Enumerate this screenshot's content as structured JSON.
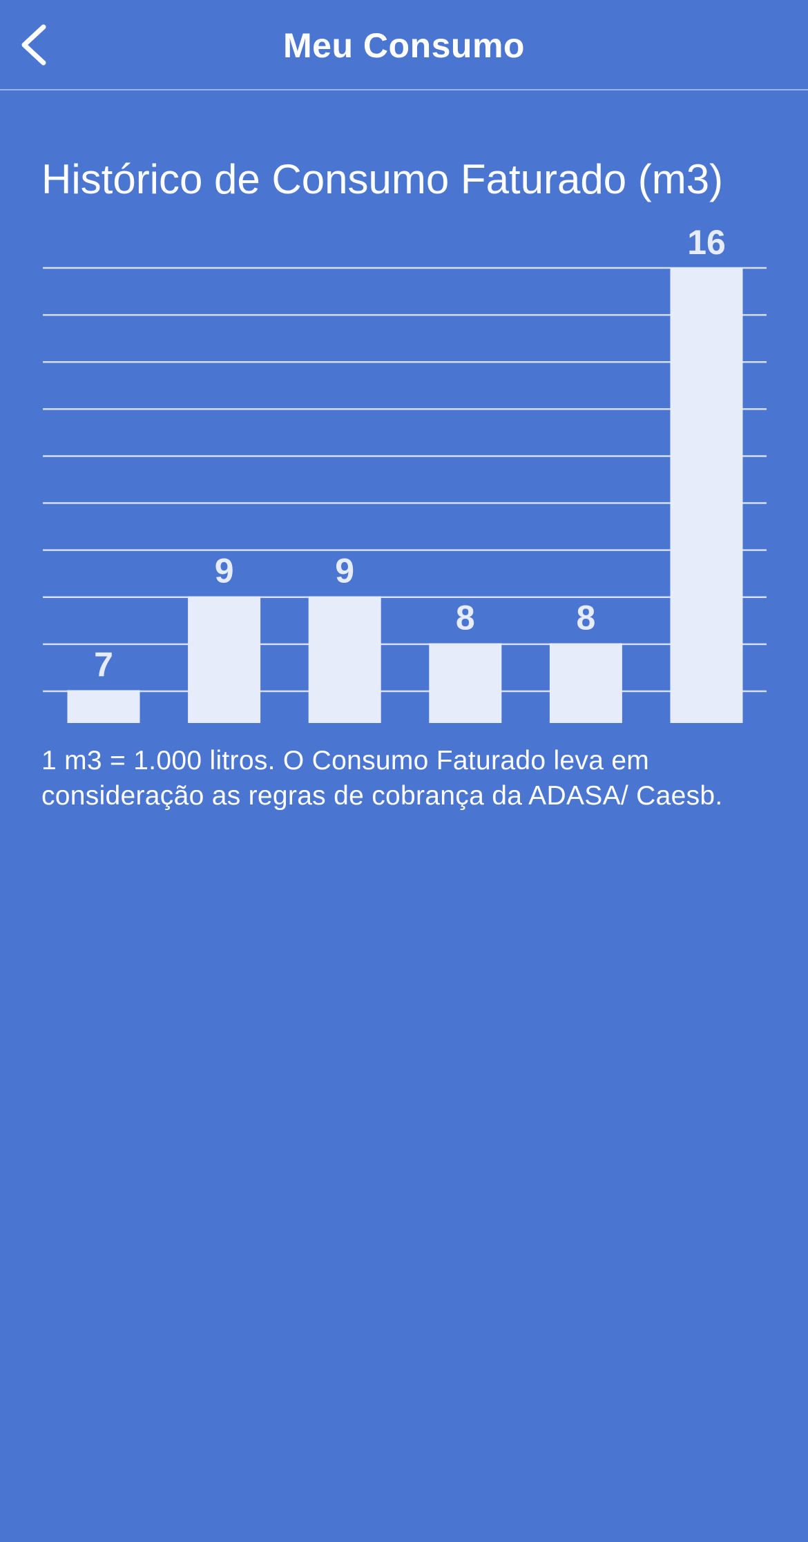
{
  "header": {
    "title": "Meu Consumo",
    "back_icon": "chevron-left-icon"
  },
  "chart": {
    "title": "Histórico de Consumo Faturado (m3)"
  },
  "chart_data": {
    "type": "bar",
    "title": "Histórico de Consumo Faturado (m3)",
    "values": [
      7,
      9,
      9,
      8,
      8,
      16
    ],
    "ylim": [
      6.3,
      16
    ],
    "grid": true,
    "data_labels": true
  },
  "footnote": "1 m3 = 1.000 litros. O Consumo Faturado leva em consideração as regras de cobrança da ADASA/ Caesb.",
  "colors": {
    "background": "#4A76D1",
    "bar": "#E6ECFA",
    "gridline": "#D7DEEE",
    "text": "#FFFFFF"
  }
}
